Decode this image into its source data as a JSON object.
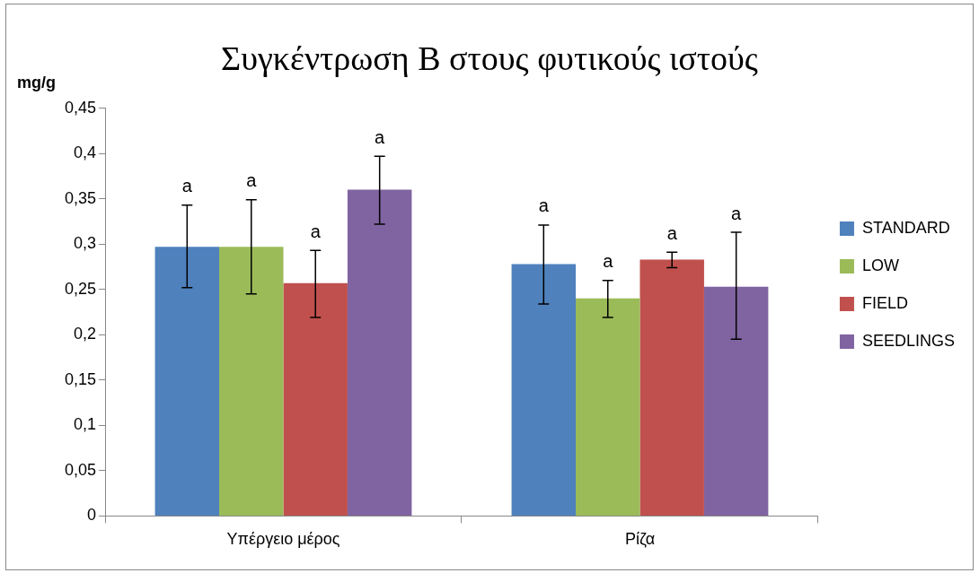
{
  "chart_data": {
    "type": "bar",
    "title": "Συγκέντρωση Β στους φυτικούς ιστούς",
    "ylabel": "mg/g",
    "categories": [
      "Υπέργειο μέρος",
      "Ρίζα"
    ],
    "series": [
      {
        "name": "STANDARD",
        "color": "#4f81bd",
        "values": [
          0.297,
          0.278
        ],
        "errors": [
          [
            0.252,
            0.343
          ],
          [
            0.234,
            0.321
          ]
        ]
      },
      {
        "name": "LOW",
        "color": "#9bbb59",
        "values": [
          0.297,
          0.24
        ],
        "errors": [
          [
            0.245,
            0.349
          ],
          [
            0.219,
            0.26
          ]
        ]
      },
      {
        "name": "FIELD",
        "color": "#c0504d",
        "values": [
          0.257,
          0.283
        ],
        "errors": [
          [
            0.219,
            0.293
          ],
          [
            0.274,
            0.291
          ]
        ]
      },
      {
        "name": "SEEDLINGS",
        "color": "#8064a2",
        "values": [
          0.36,
          0.253
        ],
        "errors": [
          [
            0.322,
            0.397
          ],
          [
            0.195,
            0.313
          ]
        ]
      }
    ],
    "ylim": [
      0,
      0.45
    ],
    "yticks": [
      {
        "value": 0,
        "label": "0"
      },
      {
        "value": 0.05,
        "label": "0,05"
      },
      {
        "value": 0.1,
        "label": "0,1"
      },
      {
        "value": 0.15,
        "label": "0,15"
      },
      {
        "value": 0.2,
        "label": "0,2"
      },
      {
        "value": 0.25,
        "label": "0,25"
      },
      {
        "value": 0.3,
        "label": "0,3"
      },
      {
        "value": 0.35,
        "label": "0,35"
      },
      {
        "value": 0.4,
        "label": "0,4"
      },
      {
        "value": 0.45,
        "label": "0,45"
      }
    ],
    "grid": false,
    "legend": "right",
    "annotations": [
      "a",
      "a",
      "a",
      "a",
      "a",
      "a",
      "a",
      "a"
    ]
  }
}
